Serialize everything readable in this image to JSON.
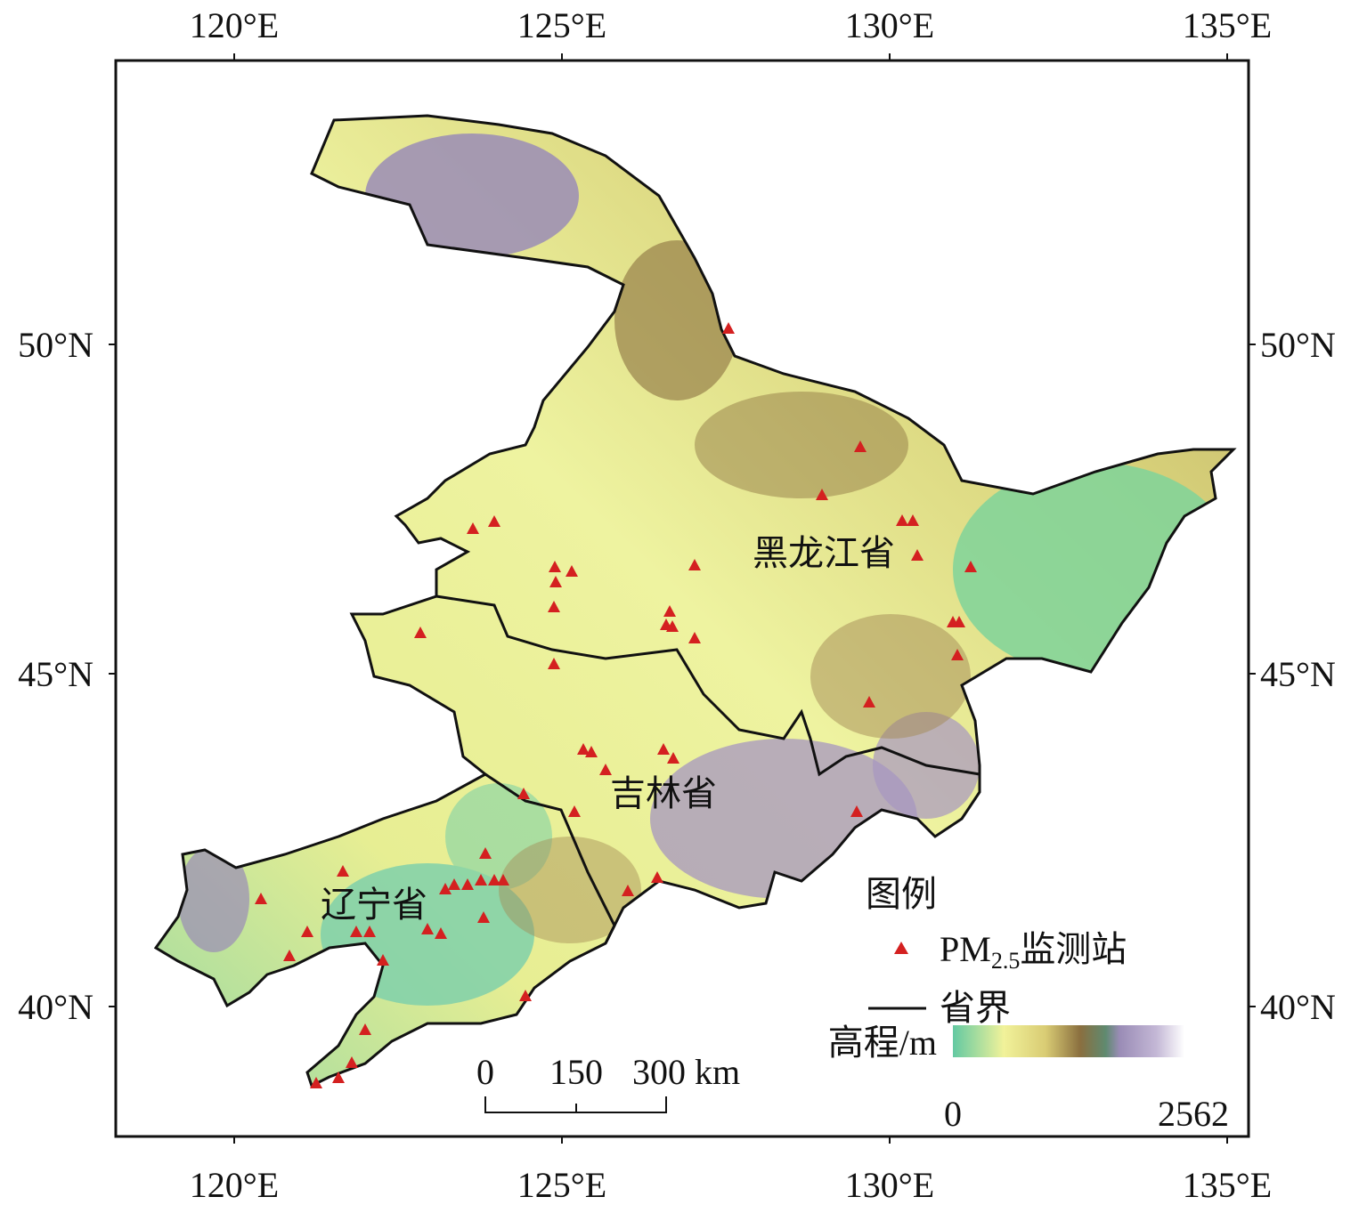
{
  "axes": {
    "top_ticks": [
      "120°E",
      "125°E",
      "130°E",
      "135°E"
    ],
    "bottom_ticks": [
      "120°E",
      "125°E",
      "130°E",
      "135°E"
    ],
    "left_ticks": [
      "50°N",
      "45°N",
      "40°N"
    ],
    "right_ticks": [
      "50°N",
      "45°N",
      "40°N"
    ]
  },
  "labels": {
    "heilongjiang": "黑龙江省",
    "jilin": "吉林省",
    "liaoning": "辽宁省"
  },
  "legend": {
    "title": "图例",
    "station": {
      "prefix": "PM",
      "subscript": "2.5",
      "suffix": "监测站"
    },
    "boundary": "省界"
  },
  "scale_bar": {
    "labels": [
      "0",
      "150",
      "300 km"
    ]
  },
  "elevation": {
    "label": "高程/m",
    "min": 0,
    "max": 2562
  }
}
